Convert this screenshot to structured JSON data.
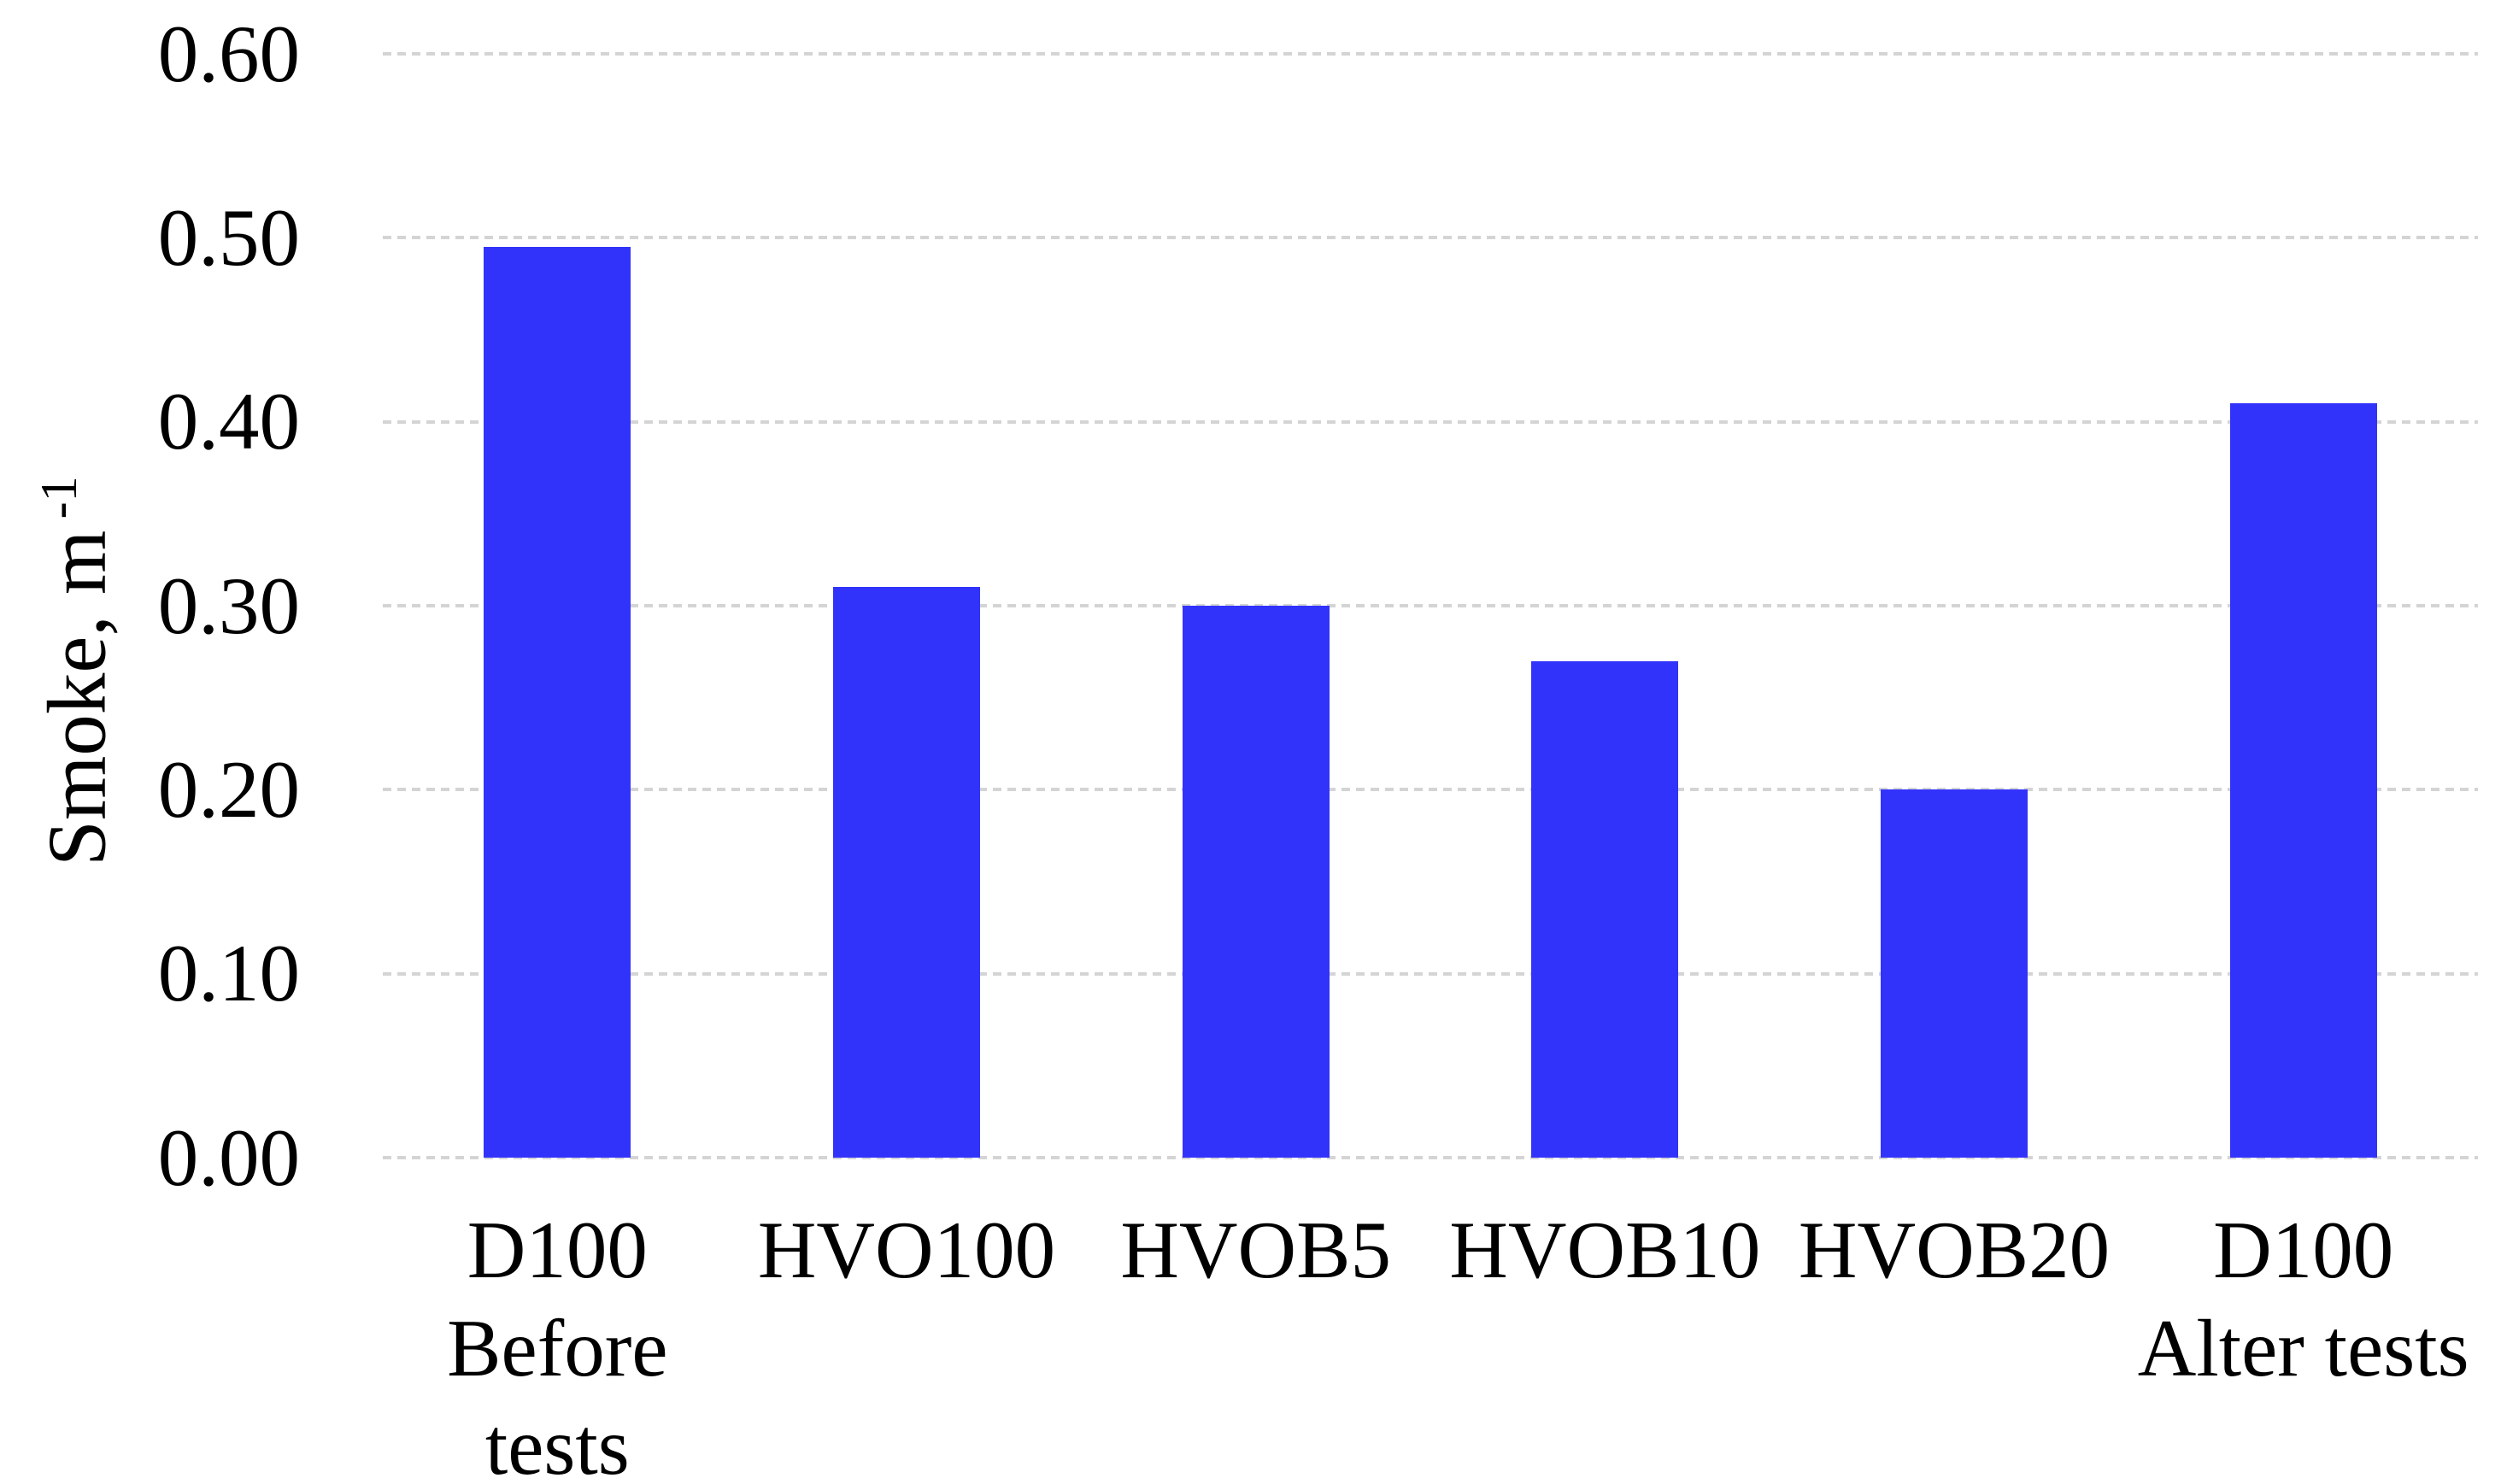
{
  "chart_data": {
    "type": "bar",
    "title": "",
    "ylabel": "Smoke, m^-1",
    "ylabel_main": "Smoke, m",
    "ylabel_superscript": "-1",
    "categories": [
      "D100 Before tests",
      "HVO100",
      "HVOB5",
      "HVOB10",
      "HVOB20",
      "D100 Alter tests"
    ],
    "category_lines": [
      [
        "D100",
        "Before",
        "tests"
      ],
      [
        "HVO100"
      ],
      [
        "HVOB5"
      ],
      [
        "HVOB10"
      ],
      [
        "HVOB20"
      ],
      [
        "D100",
        "Alter tests"
      ]
    ],
    "values": [
      0.495,
      0.31,
      0.3,
      0.27,
      0.2,
      0.41
    ],
    "ylim": [
      0.0,
      0.6
    ],
    "ytick_step": 0.1,
    "ytick_labels": [
      "0.00",
      "0.10",
      "0.20",
      "0.30",
      "0.40",
      "0.50",
      "0.60"
    ],
    "grid": "horizontal-dashed",
    "legend": "none",
    "bar_color": "#3233fa",
    "gridline_color": "#d4d4d4",
    "text_color": "#000000",
    "background_color": "#ffffff"
  }
}
